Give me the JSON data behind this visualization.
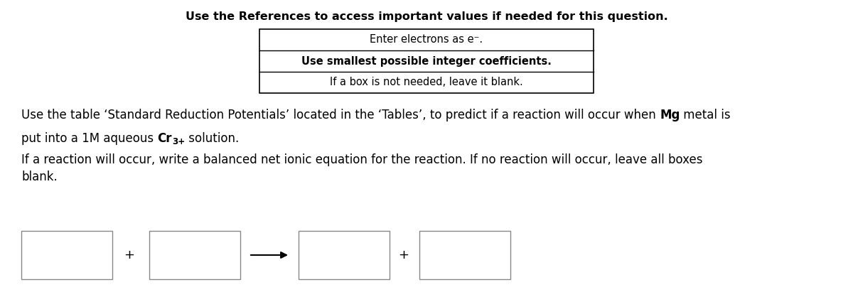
{
  "background_color": "#ffffff",
  "title_text": "Use the References to access important values if needed for this question.",
  "title_fontsize": 11.5,
  "box_line1": "Enter electrons as e⁻.",
  "box_line2": "Use smallest possible integer coefficients.",
  "box_line3": "If a box is not needed, leave it blank.",
  "body_fontsize": 12,
  "paragraph2": "If a reaction will occur, write a balanced net ionic equation for the reaction. If no reaction will occur, leave all boxes\nblank."
}
